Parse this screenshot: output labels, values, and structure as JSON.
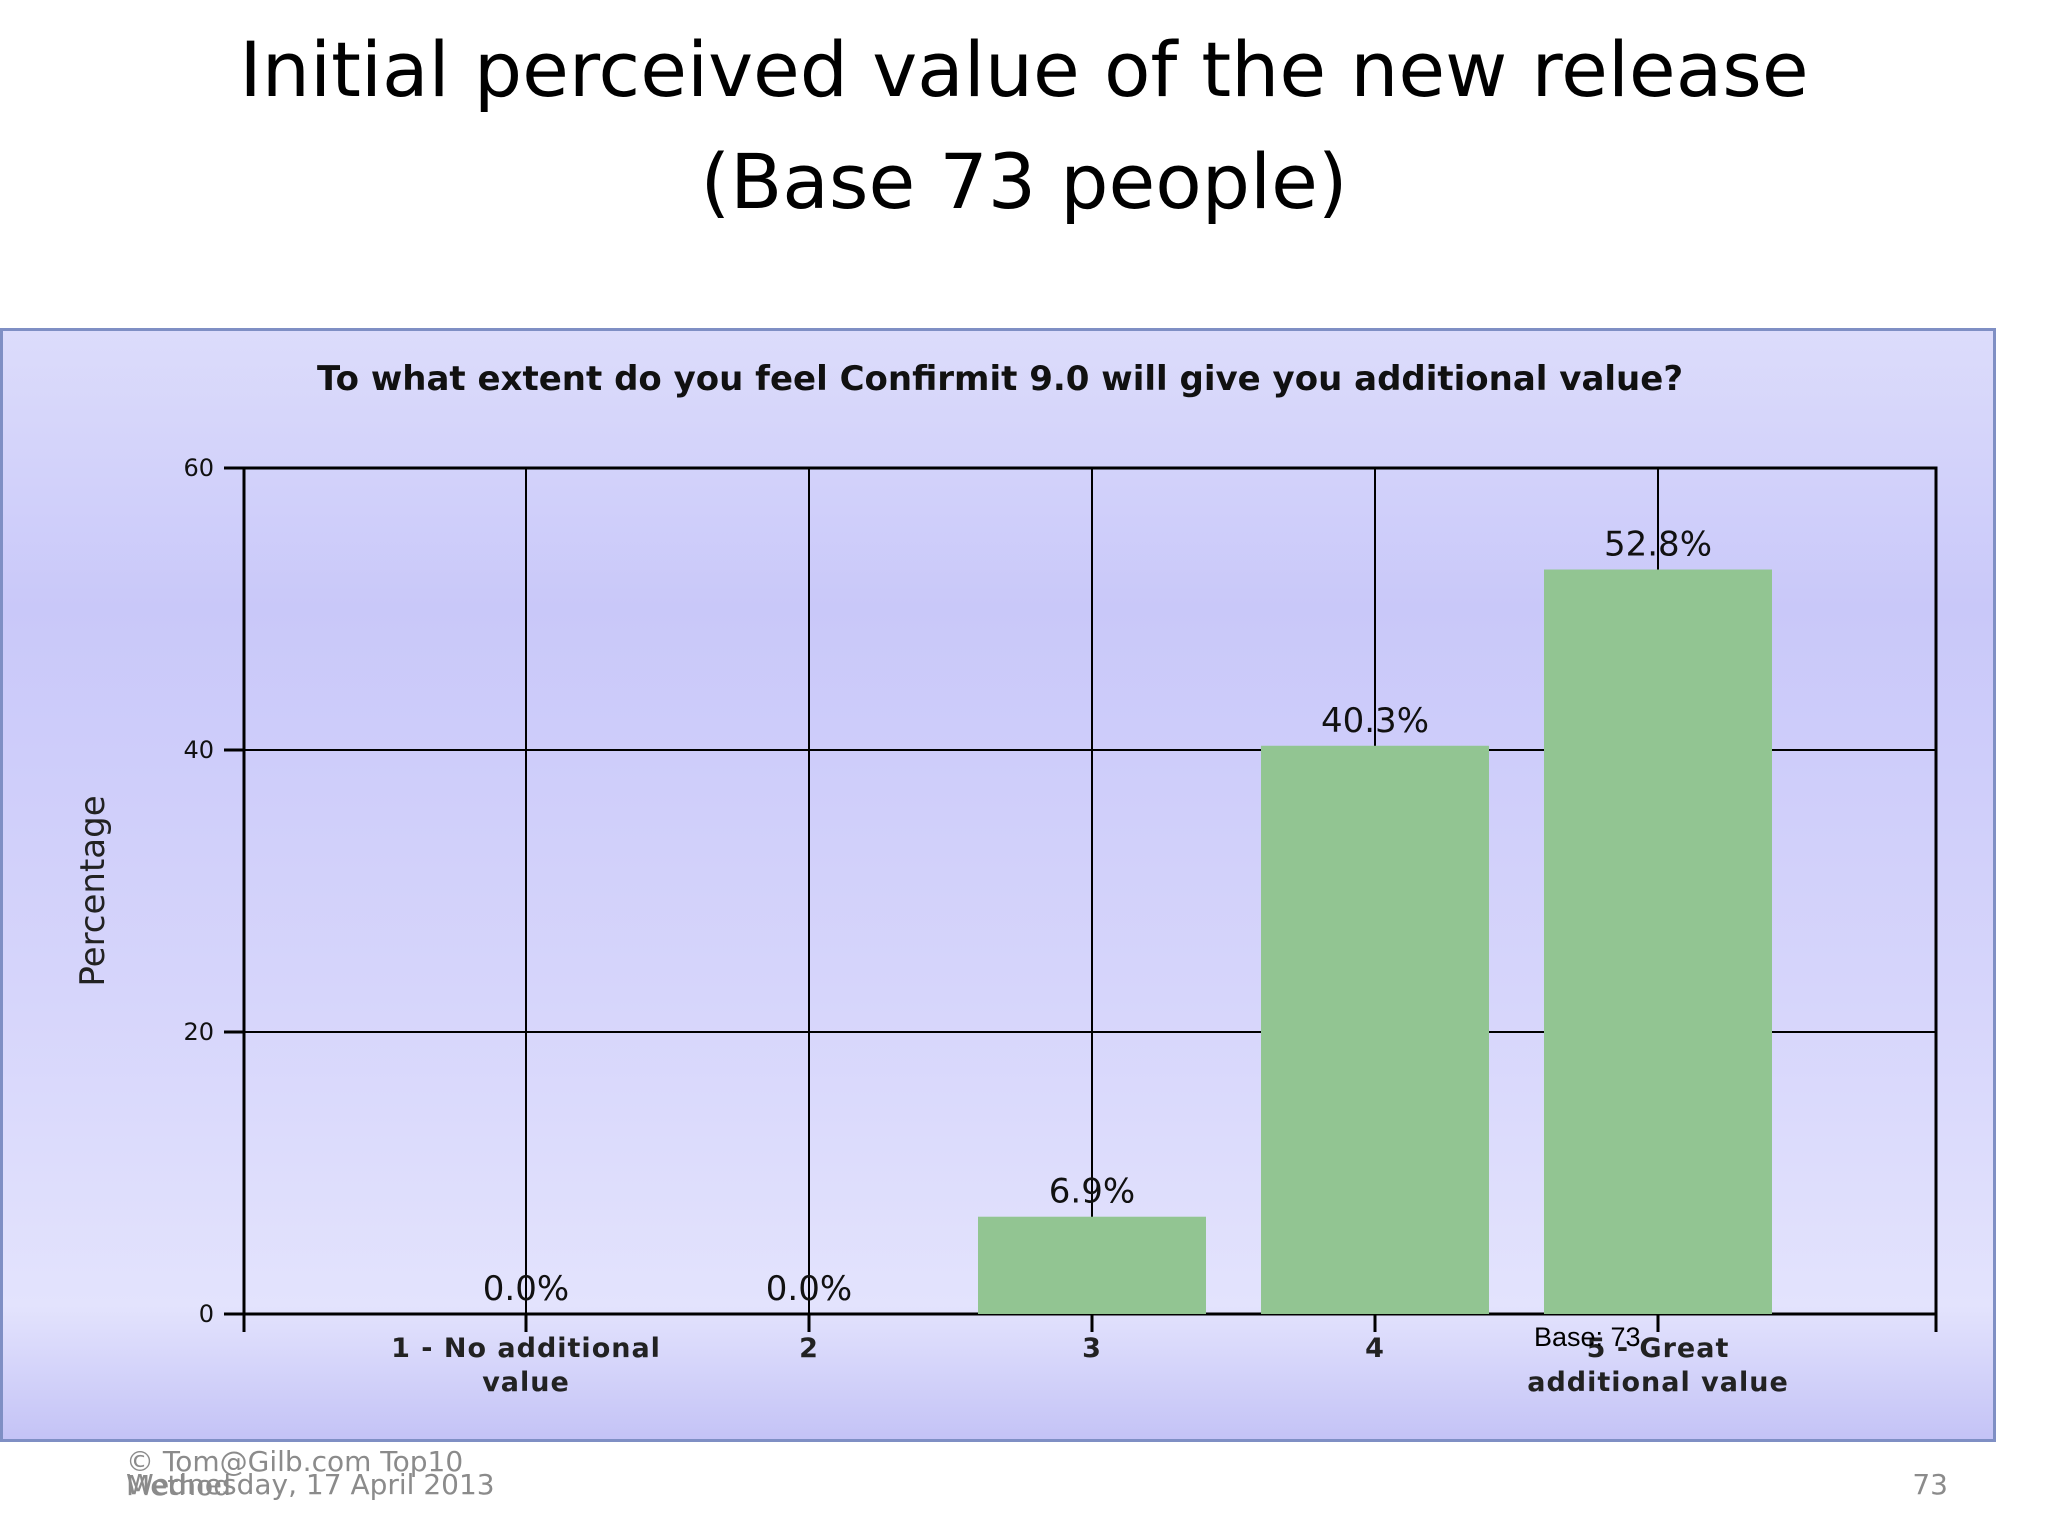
{
  "slide": {
    "title_line1": "Initial perceived value of the new release",
    "title_line2": "(Base 73 people)"
  },
  "footer": {
    "copyright": "© Tom@Gilb.com   Top10 Method",
    "date": "Wednesday, 17 April 2013",
    "page_number": "73"
  },
  "colors": {
    "bar": "#92c592",
    "gridline": "#000000",
    "panel_border": "#7f8fc4"
  },
  "chart_data": {
    "type": "bar",
    "title": "To what extent do you feel Confirmit 9.0 will give you additional value?",
    "xlabel": "",
    "ylabel": "Percentage",
    "categories": [
      "1 - No additional value",
      "2",
      "3",
      "4",
      "5 - Great additional value"
    ],
    "category_lines": [
      [
        "1 - No additional",
        "value"
      ],
      [
        "2"
      ],
      [
        "3"
      ],
      [
        "4"
      ],
      [
        "5 - Great",
        "additional value"
      ]
    ],
    "values": [
      0.0,
      0.0,
      6.9,
      40.3,
      52.8
    ],
    "data_labels": [
      "0.0%",
      "0.0%",
      "6.9%",
      "40.3%",
      "52.8%"
    ],
    "ylim": [
      0,
      60
    ],
    "yticks": [
      0,
      20,
      40,
      60
    ],
    "grid": true,
    "base_note": "Base: 73"
  }
}
